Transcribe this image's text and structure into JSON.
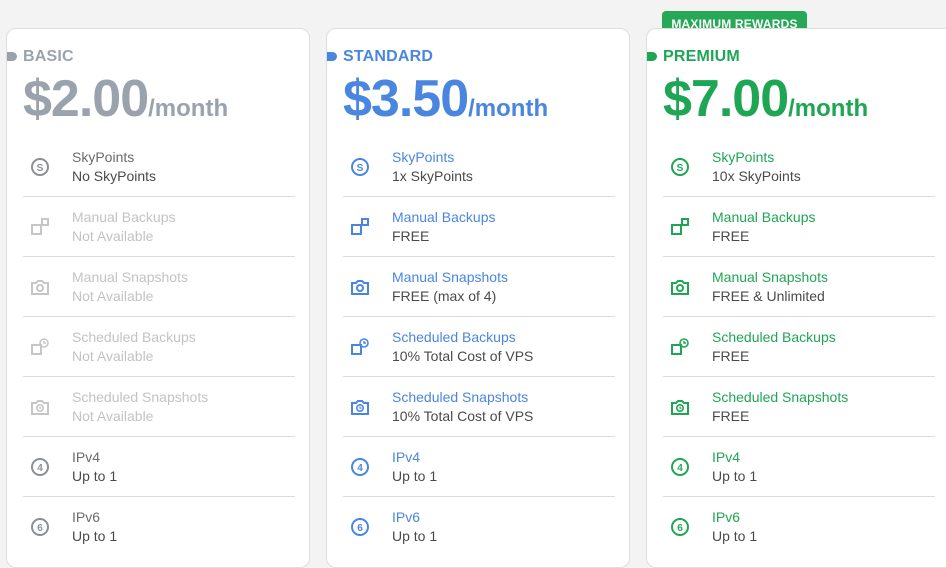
{
  "badge": "MAXIMUM REWARDS",
  "colors": {
    "basic": "#9aa3ad",
    "standard": "#4a86e0",
    "premium": "#1fa654",
    "badge": "#27a856"
  },
  "plans": [
    {
      "tier": "BASIC",
      "price": "$2.00",
      "per": "/month",
      "features": [
        {
          "icon": "skypoints-icon",
          "name": "SkyPoints",
          "value": "No SkyPoints"
        },
        {
          "icon": "backup-icon",
          "name": "Manual Backups",
          "value": "Not Available"
        },
        {
          "icon": "camera-icon",
          "name": "Manual Snapshots",
          "value": "Not Available"
        },
        {
          "icon": "scheduled-backup-icon",
          "name": "Scheduled Backups",
          "value": "Not Available"
        },
        {
          "icon": "scheduled-snapshot-icon",
          "name": "Scheduled Snapshots",
          "value": "Not Available"
        },
        {
          "icon": "ipv4-icon",
          "name": "IPv4",
          "value": "Up to 1"
        },
        {
          "icon": "ipv6-icon",
          "name": "IPv6",
          "value": "Up to 1"
        }
      ]
    },
    {
      "tier": "STANDARD",
      "price": "$3.50",
      "per": "/month",
      "features": [
        {
          "icon": "skypoints-icon",
          "name": "SkyPoints",
          "value": "1x SkyPoints"
        },
        {
          "icon": "backup-icon",
          "name": "Manual Backups",
          "value": "FREE"
        },
        {
          "icon": "camera-icon",
          "name": "Manual Snapshots",
          "value": "FREE (max of 4)"
        },
        {
          "icon": "scheduled-backup-icon",
          "name": "Scheduled Backups",
          "value": "10% Total Cost of VPS"
        },
        {
          "icon": "scheduled-snapshot-icon",
          "name": "Scheduled Snapshots",
          "value": "10% Total Cost of VPS"
        },
        {
          "icon": "ipv4-icon",
          "name": "IPv4",
          "value": "Up to 1"
        },
        {
          "icon": "ipv6-icon",
          "name": "IPv6",
          "value": "Up to 1"
        }
      ]
    },
    {
      "tier": "PREMIUM",
      "price": "$7.00",
      "per": "/month",
      "features": [
        {
          "icon": "skypoints-icon",
          "name": "SkyPoints",
          "value": "10x SkyPoints"
        },
        {
          "icon": "backup-icon",
          "name": "Manual Backups",
          "value": "FREE"
        },
        {
          "icon": "camera-icon",
          "name": "Manual Snapshots",
          "value": "FREE & Unlimited"
        },
        {
          "icon": "scheduled-backup-icon",
          "name": "Scheduled Backups",
          "value": "FREE"
        },
        {
          "icon": "scheduled-snapshot-icon",
          "name": "Scheduled Snapshots",
          "value": "FREE"
        },
        {
          "icon": "ipv4-icon",
          "name": "IPv4",
          "value": "Up to 1"
        },
        {
          "icon": "ipv6-icon",
          "name": "IPv6",
          "value": "Up to 1"
        }
      ]
    }
  ]
}
